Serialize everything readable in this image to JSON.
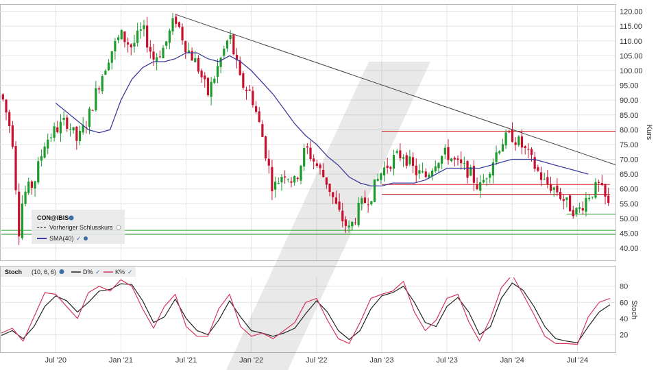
{
  "chart_data": [
    {
      "type": "candlestick",
      "instrument": "CON@IBIS",
      "ylabel": "Kurs",
      "ylim": [
        37,
        122
      ],
      "yticks": [
        "120.00",
        "115.00",
        "110.00",
        "105.00",
        "100.00",
        "95.00",
        "90.00",
        "85.00",
        "80.00",
        "75.00",
        "70.00",
        "65.00",
        "60.00",
        "55.00",
        "50.00",
        "45.00",
        "40.00"
      ],
      "x_range": [
        "2020-02",
        "2024-10"
      ],
      "x_ticks": [
        "Jul '20",
        "Jan '21",
        "Jul '21",
        "Jan '22",
        "Jul '22",
        "Jan '23",
        "Jul '23",
        "Jan '24",
        "Jul '24"
      ],
      "colors": {
        "up": "#1c9c2c",
        "down": "#c8102e",
        "sma": "#3c3c9c",
        "trend": "#404040",
        "resistance": "#d02020",
        "support": "#2ca02c"
      },
      "legend": {
        "placement": "bottom-left",
        "title": "CON@IBIS",
        "items": [
          "Vorheriger Schlusskurs",
          "SMA(40)"
        ]
      },
      "price_path": [
        [
          "2020-02",
          92
        ],
        [
          "2020-03",
          78
        ],
        [
          "2020-03-20",
          46
        ],
        [
          "2020-04",
          58
        ],
        [
          "2020-05",
          62
        ],
        [
          "2020-06",
          76
        ],
        [
          "2020-07",
          80
        ],
        [
          "2020-08",
          83
        ],
        [
          "2020-09",
          76
        ],
        [
          "2020-10",
          84
        ],
        [
          "2020-11",
          96
        ],
        [
          "2020-12",
          106
        ],
        [
          "2021-01",
          112
        ],
        [
          "2021-02",
          108
        ],
        [
          "2021-03",
          114
        ],
        [
          "2021-04",
          104
        ],
        [
          "2021-05",
          108
        ],
        [
          "2021-06",
          118
        ],
        [
          "2021-07",
          108
        ],
        [
          "2021-08",
          102
        ],
        [
          "2021-09",
          92
        ],
        [
          "2021-10",
          102
        ],
        [
          "2021-11",
          112
        ],
        [
          "2021-12",
          96
        ],
        [
          "2022-01",
          92
        ],
        [
          "2022-02",
          78
        ],
        [
          "2022-03",
          60
        ],
        [
          "2022-04",
          66
        ],
        [
          "2022-05",
          62
        ],
        [
          "2022-06",
          74
        ],
        [
          "2022-07",
          68
        ],
        [
          "2022-08",
          62
        ],
        [
          "2022-09",
          52
        ],
        [
          "2022-10",
          46
        ],
        [
          "2022-11",
          54
        ],
        [
          "2022-12",
          58
        ],
        [
          "2023-01",
          66
        ],
        [
          "2023-02",
          70
        ],
        [
          "2023-03",
          72
        ],
        [
          "2023-04",
          66
        ],
        [
          "2023-05",
          64
        ],
        [
          "2023-06",
          70
        ],
        [
          "2023-07",
          72
        ],
        [
          "2023-08",
          68
        ],
        [
          "2023-09",
          66
        ],
        [
          "2023-10",
          60
        ],
        [
          "2023-11",
          68
        ],
        [
          "2023-12",
          76
        ],
        [
          "2024-01",
          78
        ],
        [
          "2024-02",
          74
        ],
        [
          "2024-03",
          68
        ],
        [
          "2024-04",
          62
        ],
        [
          "2024-05",
          60
        ],
        [
          "2024-06",
          55
        ],
        [
          "2024-07",
          52
        ],
        [
          "2024-08",
          58
        ],
        [
          "2024-09",
          61
        ],
        [
          "2024-10",
          53
        ]
      ],
      "sma40": [
        [
          "2020-07",
          89
        ],
        [
          "2020-08",
          86
        ],
        [
          "2020-09",
          83
        ],
        [
          "2020-10",
          80
        ],
        [
          "2020-11",
          79
        ],
        [
          "2020-12",
          80
        ],
        [
          "2021-01",
          90
        ],
        [
          "2021-02",
          97
        ],
        [
          "2021-03",
          101
        ],
        [
          "2021-04",
          103
        ],
        [
          "2021-05",
          103
        ],
        [
          "2021-06",
          104
        ],
        [
          "2021-07",
          106
        ],
        [
          "2021-08",
          106
        ],
        [
          "2021-09",
          104
        ],
        [
          "2021-10",
          103
        ],
        [
          "2021-11",
          105
        ],
        [
          "2021-12",
          103
        ],
        [
          "2022-01",
          100
        ],
        [
          "2022-02",
          96
        ],
        [
          "2022-03",
          92
        ],
        [
          "2022-04",
          87
        ],
        [
          "2022-05",
          82
        ],
        [
          "2022-06",
          78
        ],
        [
          "2022-07",
          75
        ],
        [
          "2022-08",
          71
        ],
        [
          "2022-09",
          68
        ],
        [
          "2022-10",
          64
        ],
        [
          "2022-11",
          62
        ],
        [
          "2022-12",
          61
        ],
        [
          "2023-01",
          61
        ],
        [
          "2023-02",
          62
        ],
        [
          "2023-03",
          62
        ],
        [
          "2023-04",
          62
        ],
        [
          "2023-05",
          63
        ],
        [
          "2023-06",
          65
        ],
        [
          "2023-07",
          67
        ],
        [
          "2023-08",
          67
        ],
        [
          "2023-09",
          67
        ],
        [
          "2023-10",
          67
        ],
        [
          "2023-11",
          68
        ],
        [
          "2023-12",
          69
        ],
        [
          "2024-01",
          70
        ],
        [
          "2024-02",
          70
        ],
        [
          "2024-03",
          70
        ],
        [
          "2024-04",
          69
        ],
        [
          "2024-05",
          68
        ],
        [
          "2024-06",
          67
        ],
        [
          "2024-07",
          66
        ],
        [
          "2024-08",
          65
        ]
      ],
      "trendline": [
        [
          "2021-06",
          119
        ],
        [
          "2024-11",
          67.5
        ]
      ],
      "resistance_lines": [
        {
          "y": 79.5,
          "from": "2023-01",
          "to": "2024-11"
        },
        {
          "y": 61.5,
          "from": "2023-01",
          "to": "2024-10"
        },
        {
          "y": 58.2,
          "from": "2023-01",
          "to": "2024-10"
        }
      ],
      "support_lines": [
        {
          "y": 51.5,
          "from": "2024-06",
          "to": "2024-11"
        },
        {
          "y": 46.0,
          "from": "2020-02",
          "to": "2024-11"
        },
        {
          "y": 44.6,
          "from": "2020-02",
          "to": "2024-11"
        }
      ],
      "previous_close": 45.6
    },
    {
      "type": "line",
      "title": "Stoch",
      "params": "(10, 6, 6)",
      "ylabel": "Stoch",
      "ylim": [
        0,
        95
      ],
      "yticks": [
        "80",
        "60",
        "40",
        "20"
      ],
      "series": [
        {
          "name": "D%",
          "color": "#222222",
          "values": [
            [
              "2020-02",
              19
            ],
            [
              "2020-03",
              25
            ],
            [
              "2020-04",
              15
            ],
            [
              "2020-05",
              30
            ],
            [
              "2020-06",
              55
            ],
            [
              "2020-07",
              68
            ],
            [
              "2020-08",
              62
            ],
            [
              "2020-09",
              48
            ],
            [
              "2020-10",
              60
            ],
            [
              "2020-11",
              74
            ],
            [
              "2020-12",
              76
            ],
            [
              "2021-01",
              83
            ],
            [
              "2021-02",
              82
            ],
            [
              "2021-03",
              62
            ],
            [
              "2021-04",
              35
            ],
            [
              "2021-05",
              42
            ],
            [
              "2021-06",
              64
            ],
            [
              "2021-07",
              40
            ],
            [
              "2021-08",
              25
            ],
            [
              "2021-09",
              20
            ],
            [
              "2021-10",
              38
            ],
            [
              "2021-11",
              62
            ],
            [
              "2021-12",
              42
            ],
            [
              "2022-01",
              25
            ],
            [
              "2022-02",
              22
            ],
            [
              "2022-03",
              18
            ],
            [
              "2022-04",
              22
            ],
            [
              "2022-05",
              28
            ],
            [
              "2022-06",
              46
            ],
            [
              "2022-07",
              62
            ],
            [
              "2022-08",
              48
            ],
            [
              "2022-09",
              25
            ],
            [
              "2022-10",
              14
            ],
            [
              "2022-11",
              25
            ],
            [
              "2022-12",
              52
            ],
            [
              "2023-01",
              68
            ],
            [
              "2023-02",
              72
            ],
            [
              "2023-03",
              80
            ],
            [
              "2023-04",
              60
            ],
            [
              "2023-05",
              35
            ],
            [
              "2023-06",
              30
            ],
            [
              "2023-07",
              55
            ],
            [
              "2023-08",
              66
            ],
            [
              "2023-09",
              48
            ],
            [
              "2023-10",
              20
            ],
            [
              "2023-11",
              30
            ],
            [
              "2023-12",
              65
            ],
            [
              "2024-01",
              84
            ],
            [
              "2024-02",
              75
            ],
            [
              "2024-03",
              55
            ],
            [
              "2024-04",
              30
            ],
            [
              "2024-05",
              15
            ],
            [
              "2024-06",
              12
            ],
            [
              "2024-07",
              10
            ],
            [
              "2024-08",
              30
            ],
            [
              "2024-09",
              48
            ],
            [
              "2024-10",
              57
            ]
          ]
        },
        {
          "name": "K%",
          "color": "#d4375b",
          "values": [
            [
              "2020-02",
              22
            ],
            [
              "2020-03",
              28
            ],
            [
              "2020-04",
              12
            ],
            [
              "2020-05",
              42
            ],
            [
              "2020-06",
              72
            ],
            [
              "2020-07",
              70
            ],
            [
              "2020-08",
              55
            ],
            [
              "2020-09",
              40
            ],
            [
              "2020-10",
              72
            ],
            [
              "2020-11",
              80
            ],
            [
              "2020-12",
              74
            ],
            [
              "2021-01",
              88
            ],
            [
              "2021-02",
              80
            ],
            [
              "2021-03",
              52
            ],
            [
              "2021-04",
              28
            ],
            [
              "2021-05",
              55
            ],
            [
              "2021-06",
              70
            ],
            [
              "2021-07",
              30
            ],
            [
              "2021-08",
              18
            ],
            [
              "2021-09",
              18
            ],
            [
              "2021-10",
              52
            ],
            [
              "2021-11",
              70
            ],
            [
              "2021-12",
              30
            ],
            [
              "2022-01",
              18
            ],
            [
              "2022-02",
              22
            ],
            [
              "2022-03",
              15
            ],
            [
              "2022-04",
              25
            ],
            [
              "2022-05",
              35
            ],
            [
              "2022-06",
              60
            ],
            [
              "2022-07",
              65
            ],
            [
              "2022-08",
              38
            ],
            [
              "2022-09",
              15
            ],
            [
              "2022-10",
              9
            ],
            [
              "2022-11",
              35
            ],
            [
              "2022-12",
              65
            ],
            [
              "2023-01",
              70
            ],
            [
              "2023-02",
              74
            ],
            [
              "2023-03",
              86
            ],
            [
              "2023-04",
              48
            ],
            [
              "2023-05",
              25
            ],
            [
              "2023-06",
              38
            ],
            [
              "2023-07",
              65
            ],
            [
              "2023-08",
              70
            ],
            [
              "2023-09",
              36
            ],
            [
              "2023-10",
              12
            ],
            [
              "2023-11",
              40
            ],
            [
              "2023-12",
              78
            ],
            [
              "2024-01",
              94
            ],
            [
              "2024-02",
              70
            ],
            [
              "2024-03",
              45
            ],
            [
              "2024-04",
              18
            ],
            [
              "2024-05",
              9
            ],
            [
              "2024-06",
              9
            ],
            [
              "2024-07",
              8
            ],
            [
              "2024-08",
              42
            ],
            [
              "2024-09",
              60
            ],
            [
              "2024-10",
              65
            ]
          ]
        }
      ],
      "x_ticks": [
        "Jul '20",
        "Jan '21",
        "Jul '21",
        "Jan '22",
        "Jul '22",
        "Jan '23",
        "Jul '23",
        "Jan '24",
        "Jul '24"
      ]
    }
  ]
}
